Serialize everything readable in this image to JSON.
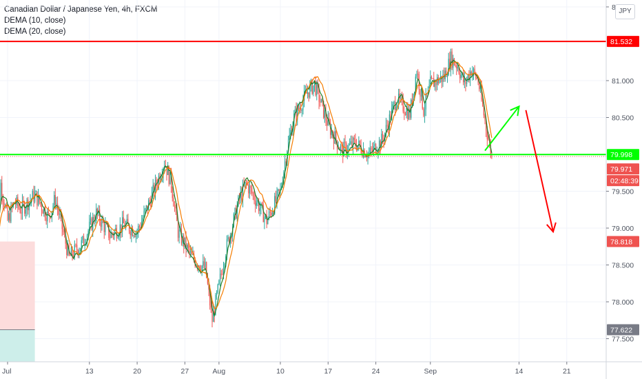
{
  "legend": {
    "symbol_line": "Canadian Dollar / Japanese Yen, 4h, FXCM",
    "dema10_line": "DEMA (10, close)",
    "dema20_line": "DEMA (20, close)"
  },
  "currency_button": "JPY",
  "price_axis": {
    "ticks": [
      "77.500",
      "78.000",
      "78.500",
      "79.000",
      "79.500",
      "80.500",
      "81.000",
      "82.000"
    ]
  },
  "time_axis": {
    "ticks": [
      "Jul",
      "13",
      "20",
      "27",
      "Aug",
      "10",
      "17",
      "24",
      "Sep",
      "14",
      "21"
    ]
  },
  "price_tags": {
    "resistance": {
      "text": "81.532",
      "color": "#ff0000"
    },
    "support": {
      "text": "79.998",
      "color": "#00ff00"
    },
    "last_price": {
      "text": "79.971",
      "color": "#ef5350"
    },
    "countdown": {
      "text": "02:48:39",
      "color": "#ef5350"
    },
    "box_top": {
      "text": "78.818",
      "color": "#ef5350"
    },
    "box_bottom": {
      "text": "77.622",
      "color": "#787b86"
    }
  },
  "colors": {
    "up_candle": "#26a69a",
    "down_candle": "#ef5350",
    "dema10": "#1e7d22",
    "dema20": "#f57c00",
    "resistance_line": "#ff0000",
    "support_line": "#00ff00",
    "up_arrow": "#00ff00",
    "down_arrow": "#ff0000",
    "short_stop_zone": "#fcdcdc",
    "short_target_zone": "#cdeeea"
  },
  "chart_data": {
    "type": "candlestick",
    "symbol": "CADJPY",
    "ylim": [
      77.2,
      82.1
    ],
    "xlim": [
      "2020-06-29",
      "2020-09-27"
    ],
    "horizontal_lines": [
      {
        "value": 81.532
      },
      {
        "value": 79.998
      }
    ],
    "last_price": 79.971,
    "short_position_zone": {
      "entry": 77.622,
      "stop": 78.818,
      "start": "2020-06-29",
      "end": "2020-07-05"
    },
    "projection_arrows": [
      {
        "direction": "up",
        "from": {
          "date": "2020-09-09",
          "price": 80.05
        },
        "to": {
          "date": "2020-09-14",
          "price": 80.65
        }
      },
      {
        "direction": "down",
        "from": {
          "date": "2020-09-15",
          "price": 80.6
        },
        "to": {
          "date": "2020-09-19",
          "price": 78.95
        }
      }
    ],
    "close_path": [
      [
        "2020-06-29",
        78.7
      ],
      [
        "2020-06-30",
        79.6
      ],
      [
        "2020-07-01",
        79.1
      ],
      [
        "2020-07-02",
        79.35
      ],
      [
        "2020-07-03",
        79.25
      ],
      [
        "2020-07-05",
        79.45
      ],
      [
        "2020-07-07",
        79.15
      ],
      [
        "2020-07-08",
        79.4
      ],
      [
        "2020-07-10",
        78.6
      ],
      [
        "2020-07-12",
        78.8
      ],
      [
        "2020-07-14",
        79.2
      ],
      [
        "2020-07-16",
        78.9
      ],
      [
        "2020-07-18",
        79.05
      ],
      [
        "2020-07-20",
        78.95
      ],
      [
        "2020-07-22",
        79.4
      ],
      [
        "2020-07-24",
        79.9
      ],
      [
        "2020-07-25",
        79.6
      ],
      [
        "2020-07-26",
        78.95
      ],
      [
        "2020-07-28",
        78.6
      ],
      [
        "2020-07-30",
        78.45
      ],
      [
        "2020-07-31",
        77.75
      ],
      [
        "2020-08-02",
        78.7
      ],
      [
        "2020-08-04",
        79.4
      ],
      [
        "2020-08-05",
        79.6
      ],
      [
        "2020-08-06",
        79.45
      ],
      [
        "2020-08-08",
        79.1
      ],
      [
        "2020-08-10",
        79.5
      ],
      [
        "2020-08-11",
        80.1
      ],
      [
        "2020-08-12",
        80.5
      ],
      [
        "2020-08-14",
        80.85
      ],
      [
        "2020-08-15",
        80.95
      ],
      [
        "2020-08-17",
        80.4
      ],
      [
        "2020-08-19",
        80.05
      ],
      [
        "2020-08-21",
        80.15
      ],
      [
        "2020-08-23",
        80.0
      ],
      [
        "2020-08-25",
        80.2
      ],
      [
        "2020-08-27",
        80.75
      ],
      [
        "2020-08-29",
        80.55
      ],
      [
        "2020-08-30",
        81.15
      ],
      [
        "2020-08-31",
        80.6
      ],
      [
        "2020-09-01",
        80.95
      ],
      [
        "2020-09-03",
        81.05
      ],
      [
        "2020-09-04",
        81.3
      ],
      [
        "2020-09-05",
        81.2
      ],
      [
        "2020-09-06",
        80.95
      ],
      [
        "2020-09-07",
        81.15
      ],
      [
        "2020-09-08",
        81.0
      ],
      [
        "2020-09-09",
        80.45
      ],
      [
        "2020-09-10",
        79.97
      ]
    ]
  }
}
